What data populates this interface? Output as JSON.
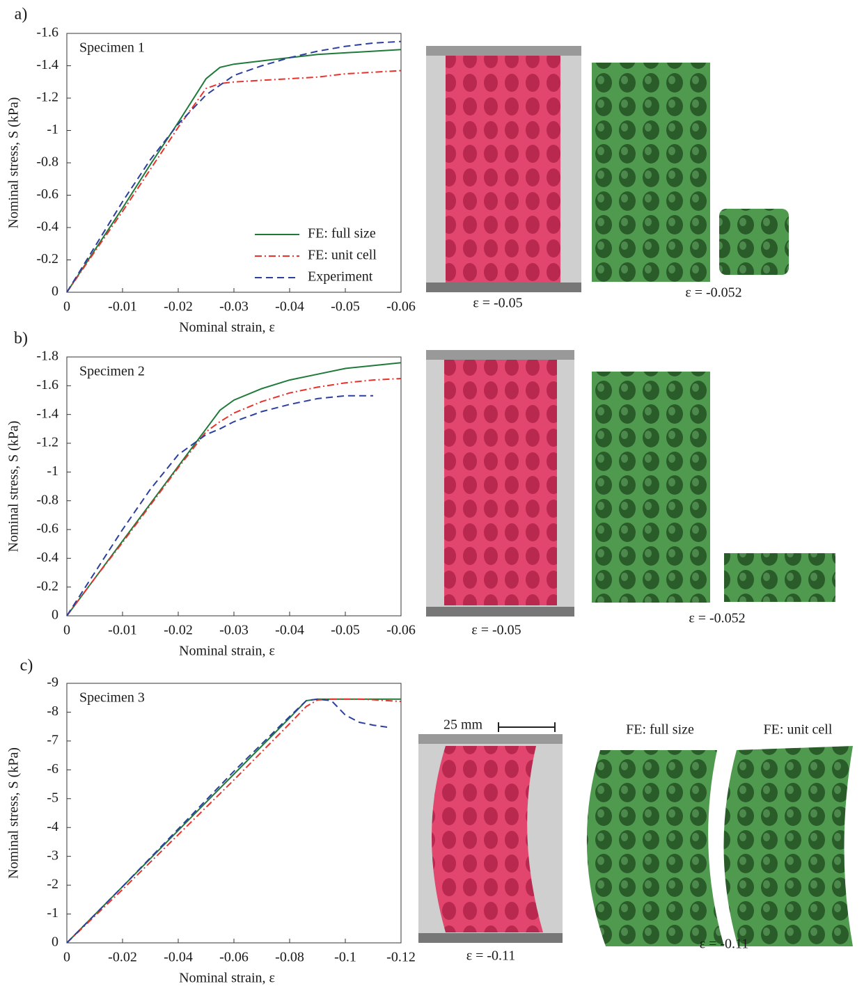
{
  "chart_data": [
    {
      "type": "line",
      "panel_label": "a)",
      "title": "Specimen 1",
      "xlabel": "Nominal strain, ε",
      "ylabel": "Nominal stress, S (kPa)",
      "x": [
        0,
        -0.005,
        -0.01,
        -0.015,
        -0.02,
        -0.025,
        -0.0275,
        -0.03,
        -0.035,
        -0.04,
        -0.045,
        -0.05,
        -0.055,
        -0.06
      ],
      "xlim": [
        0,
        -0.06
      ],
      "xticks": [
        0,
        -0.01,
        -0.02,
        -0.03,
        -0.04,
        -0.05,
        -0.06
      ],
      "ylim": [
        0,
        -1.6
      ],
      "yticks": [
        0,
        -0.2,
        -0.4,
        -0.6,
        -0.8,
        -1,
        -1.2,
        -1.4,
        -1.6
      ],
      "legend": "lower right",
      "series": [
        {
          "name": "FE: full size",
          "color": "#1f7a3a",
          "values": [
            0,
            -0.26,
            -0.52,
            -0.79,
            -1.05,
            -1.32,
            -1.39,
            -1.41,
            -1.43,
            -1.45,
            -1.47,
            -1.48,
            -1.49,
            -1.5
          ]
        },
        {
          "name": "FE: unit cell",
          "color": "#e8322b",
          "values": [
            0,
            -0.25,
            -0.5,
            -0.76,
            -1.02,
            -1.26,
            -1.29,
            -1.3,
            -1.31,
            -1.32,
            -1.33,
            -1.35,
            -1.36,
            -1.37
          ]
        },
        {
          "name": "Experiment",
          "color": "#2b3f9e",
          "values": [
            0,
            -0.28,
            -0.56,
            -0.82,
            -1.04,
            -1.22,
            -1.28,
            -1.34,
            -1.4,
            -1.45,
            -1.49,
            -1.52,
            -1.54,
            -1.55
          ]
        }
      ],
      "annotations": [
        "ε = -0.05",
        "ε = -0.052"
      ]
    },
    {
      "type": "line",
      "panel_label": "b)",
      "title": "Specimen 2",
      "xlabel": "Nominal strain, ε",
      "ylabel": "Nominal stress, S (kPa)",
      "x": [
        0,
        -0.005,
        -0.01,
        -0.015,
        -0.02,
        -0.025,
        -0.0275,
        -0.03,
        -0.035,
        -0.04,
        -0.045,
        -0.05,
        -0.055,
        -0.06
      ],
      "xlim": [
        0,
        -0.06
      ],
      "xticks": [
        0,
        -0.01,
        -0.02,
        -0.03,
        -0.04,
        -0.05,
        -0.06
      ],
      "ylim": [
        0,
        -1.8
      ],
      "yticks": [
        0,
        -0.2,
        -0.4,
        -0.6,
        -0.8,
        -1,
        -1.2,
        -1.4,
        -1.6,
        -1.8
      ],
      "series": [
        {
          "color": "#1f7a3a",
          "values": [
            0,
            -0.26,
            -0.52,
            -0.78,
            -1.04,
            -1.3,
            -1.43,
            -1.5,
            -1.58,
            -1.64,
            -1.68,
            -1.72,
            -1.74,
            -1.76
          ]
        },
        {
          "color": "#e8322b",
          "values": [
            0,
            -0.26,
            -0.51,
            -0.77,
            -1.03,
            -1.28,
            -1.35,
            -1.41,
            -1.49,
            -1.55,
            -1.59,
            -1.62,
            -1.64,
            -1.65
          ]
        },
        {
          "color": "#2b3f9e",
          "values": [
            0,
            -0.3,
            -0.6,
            -0.88,
            -1.12,
            -1.26,
            -1.3,
            -1.35,
            -1.42,
            -1.47,
            -1.51,
            -1.53,
            -1.53,
            null
          ]
        }
      ],
      "annotations": [
        "ε = -0.05",
        "ε = -0.052"
      ]
    },
    {
      "type": "line",
      "panel_label": "c)",
      "title": "Specimen 3",
      "xlabel": "Nominal strain, ε",
      "ylabel": "Nominal stress, S (kPa)",
      "x": [
        0,
        -0.02,
        -0.04,
        -0.06,
        -0.08,
        -0.086,
        -0.09,
        -0.095,
        -0.1,
        -0.105,
        -0.11,
        -0.115,
        -0.12
      ],
      "xlim": [
        0,
        -0.12
      ],
      "xticks": [
        0,
        -0.02,
        -0.04,
        -0.06,
        -0.08,
        -0.1,
        -0.12
      ],
      "ylim": [
        0,
        -9
      ],
      "yticks": [
        0,
        -1,
        -2,
        -3,
        -4,
        -5,
        -6,
        -7,
        -8,
        -9
      ],
      "series": [
        {
          "color": "#1f7a3a",
          "values": [
            0,
            -1.95,
            -3.9,
            -5.85,
            -7.8,
            -8.4,
            -8.45,
            -8.45,
            -8.45,
            -8.45,
            -8.45,
            -8.45,
            -8.45
          ]
        },
        {
          "color": "#e8322b",
          "values": [
            0,
            -1.85,
            -3.75,
            -5.65,
            -7.6,
            -8.2,
            -8.42,
            -8.45,
            -8.45,
            -8.45,
            -8.43,
            -8.4,
            -8.37
          ]
        },
        {
          "color": "#2b3f9e",
          "values": [
            0,
            -1.95,
            -3.95,
            -5.95,
            -7.85,
            -8.4,
            -8.45,
            -8.4,
            -7.9,
            -7.65,
            -7.55,
            -7.48,
            null
          ]
        }
      ],
      "annotations": [
        "25 mm",
        "ε = -0.11",
        "FE: full size",
        "FE: unit cell",
        "ε = -0.11"
      ]
    }
  ]
}
